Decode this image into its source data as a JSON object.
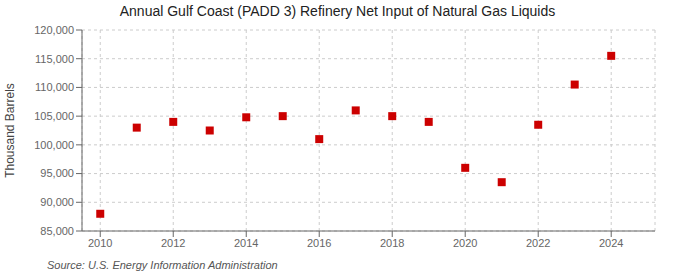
{
  "chart_data": {
    "type": "scatter",
    "title": "Annual Gulf Coast (PADD 3) Refinery Net Input of Natural Gas Liquids",
    "ylabel": "Thousand Barrels",
    "source": "Source: U.S. Energy Information Administration",
    "x": [
      2010,
      2011,
      2012,
      2013,
      2014,
      2015,
      2016,
      2017,
      2018,
      2019,
      2020,
      2021,
      2022,
      2023,
      2024
    ],
    "values": [
      88000,
      103000,
      104000,
      102500,
      104800,
      105000,
      101000,
      106000,
      105000,
      104000,
      96000,
      93500,
      103500,
      110500,
      115500
    ],
    "color": "#cc0000",
    "marker": "square",
    "xlim": [
      2009.5,
      2025.2
    ],
    "xticks": [
      2010,
      2012,
      2014,
      2016,
      2018,
      2020,
      2022,
      2024
    ],
    "ylim": [
      85000,
      120000
    ],
    "yticks": [
      {
        "value": 85000,
        "label": "85,000"
      },
      {
        "value": 90000,
        "label": "90,000"
      },
      {
        "value": 95000,
        "label": "95,000"
      },
      {
        "value": 100000,
        "label": "100,000"
      },
      {
        "value": 105000,
        "label": "105,000"
      },
      {
        "value": 110000,
        "label": "110,000"
      },
      {
        "value": 115000,
        "label": "115,000"
      },
      {
        "value": 120000,
        "label": "120,000"
      }
    ],
    "grid": true
  }
}
